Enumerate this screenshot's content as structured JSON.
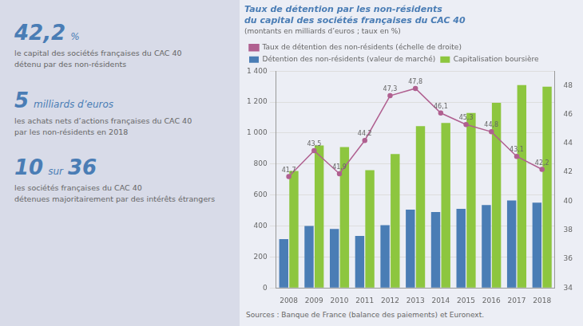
{
  "chart_data": {
    "type": "bar",
    "title": [
      "Taux de détention par les non-résidents",
      "du capital des sociétés françaises du CAC 40"
    ],
    "subtitle": "(montants en milliards d’euros ; taux en %)",
    "categories": [
      "2008",
      "2009",
      "2010",
      "2011",
      "2012",
      "2013",
      "2014",
      "2015",
      "2016",
      "2017",
      "2018"
    ],
    "series": [
      {
        "name": "Détention des non-résidents (valeur de marché)",
        "type": "bar",
        "color": "#4a7db5",
        "values": [
          315,
          400,
          380,
          335,
          405,
          505,
          490,
          510,
          535,
          565,
          550
        ]
      },
      {
        "name": "Capitalisation boursière",
        "type": "bar",
        "color": "#8dc63f",
        "values": [
          755,
          920,
          910,
          760,
          865,
          1045,
          1065,
          1130,
          1195,
          1310,
          1300
        ]
      },
      {
        "name": "Taux de détention des non-résidents (échelle de droite)",
        "type": "line",
        "color": "#b06090",
        "axis": "y2",
        "marker": "circle",
        "line_style": "solid",
        "data_labels": true,
        "values": [
          41.7,
          43.5,
          41.9,
          44.2,
          47.3,
          47.8,
          46.1,
          45.3,
          44.8,
          43.1,
          42.2
        ],
        "value_labels": [
          "41,7",
          "43,5",
          "41,9",
          "44,2",
          "47,3",
          "47,8",
          "46,1",
          "45,3",
          "44,8",
          "43,1",
          "42,2"
        ]
      }
    ],
    "ylim": [
      0,
      1400
    ],
    "yticks": [
      0,
      200,
      400,
      600,
      800,
      {
        "value": 1000,
        "label": "1 000"
      },
      {
        "value": 1200,
        "label": "1 200"
      },
      {
        "value": 1400,
        "label": "1 400"
      }
    ],
    "y2lim": [
      34,
      49
    ],
    "y2ticks": [
      34,
      36,
      38,
      40,
      42,
      44,
      46,
      48
    ],
    "grid": true,
    "legend": "top",
    "annotations": [
      [
        "42,2",
        "%",
        "le capital des sociétés françaises du CAC 40\ndétenu par des non-résidents"
      ],
      [
        "5",
        "milliards d’euros",
        "les achats nets d’actions françaises du CAC 40\npar les non-résidents en 2018"
      ],
      [
        "10",
        "sur",
        "36",
        "les sociétés françaises du CAC 40\ndétenues majoritairement par des intérêts étrangers"
      ]
    ],
    "source": "Sources : Banque de France (balance des paiements) et Euronext."
  }
}
